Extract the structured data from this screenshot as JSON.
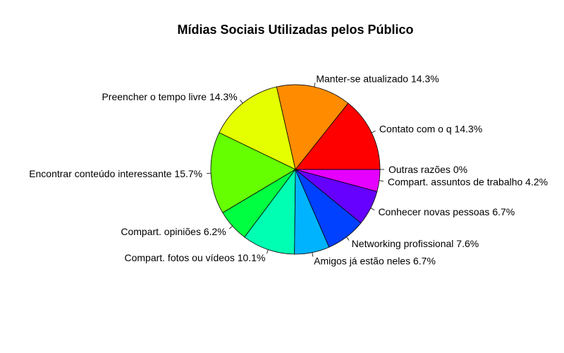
{
  "chart_data": {
    "type": "pie",
    "title": "Mídias Sociais Utilizadas pelos Público",
    "direction": "counterclockwise",
    "start_angle_deg": 0,
    "border_color": "#000000",
    "slices": [
      {
        "label": "Contato com o  q 14.3%",
        "value": 14.3,
        "color": "#FF0000"
      },
      {
        "label": "Manter-se atualizado  14.3%",
        "value": 14.3,
        "color": "#FF8C00"
      },
      {
        "label": "Preencher o tempo livre 14.3%",
        "value": 14.3,
        "color": "#E5FF00"
      },
      {
        "label": "Encontrar conteúdo interessante 15.7%",
        "value": 15.7,
        "color": "#66FF00"
      },
      {
        "label": "Compart. opiniões 6.2%",
        "value": 6.2,
        "color": "#00FF40"
      },
      {
        "label": "Compart. fotos ou vídeos 10.1%",
        "value": 10.1,
        "color": "#00FFB2"
      },
      {
        "label": "Amigos já estão neles 6.7%",
        "value": 6.7,
        "color": "#00B3FF"
      },
      {
        "label": "Networking profissional 7.6%",
        "value": 7.6,
        "color": "#0040FF"
      },
      {
        "label": "Conhecer novas pessoas 6.7%",
        "value": 6.7,
        "color": "#6600FF"
      },
      {
        "label": "Compart. assuntos de trabalho 4.2%",
        "value": 4.2,
        "color": "#E500FF"
      },
      {
        "label": "Outras razões 0%",
        "value": 0,
        "color": "#FF0099"
      }
    ]
  }
}
